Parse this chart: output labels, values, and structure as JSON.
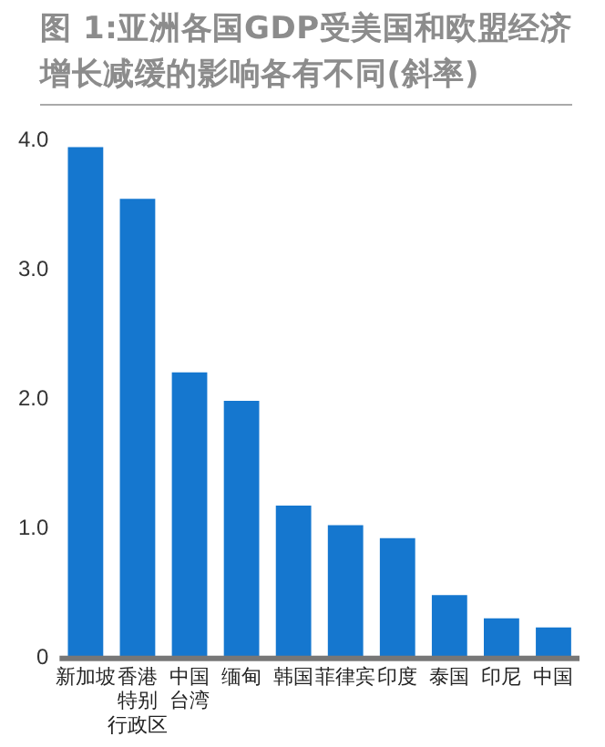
{
  "chart_data": {
    "type": "bar",
    "title": "图 1:亚洲各国GDP受美国和欧盟经济增长减缓的影响各有不同(斜率)",
    "categories": [
      "新加坡",
      "香港特别行政区",
      "中国台湾",
      "缅甸",
      "韩国",
      "菲律宾",
      "印度",
      "泰国",
      "印尼",
      "中国"
    ],
    "values": [
      3.95,
      3.55,
      2.21,
      1.99,
      1.18,
      1.03,
      0.93,
      0.49,
      0.31,
      0.24
    ],
    "color": "#1577cf",
    "ylim": [
      0,
      4
    ],
    "yticks": [
      {
        "value": 0,
        "label": "0"
      },
      {
        "value": 1,
        "label": "1.0"
      },
      {
        "value": 2,
        "label": "2.0"
      },
      {
        "value": 3,
        "label": "3.0"
      },
      {
        "value": 4,
        "label": "4.0"
      }
    ],
    "grid": false,
    "legend": false
  }
}
